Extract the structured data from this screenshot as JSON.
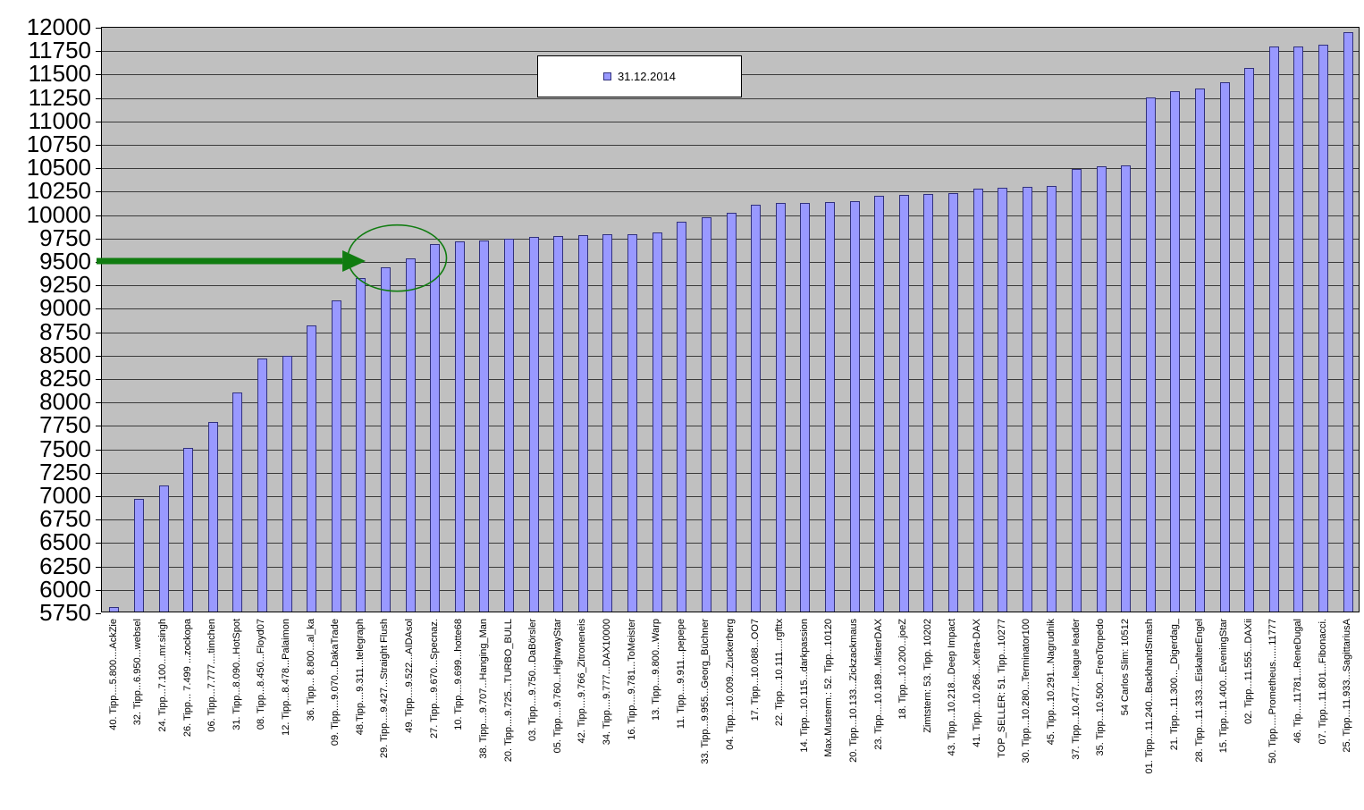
{
  "chart_data": {
    "type": "bar",
    "title": "",
    "legend": [
      "31.12.2014"
    ],
    "legend_position": "top-center",
    "grid": true,
    "ylim": [
      5750,
      12000
    ],
    "ytick_step": 250,
    "categories": [
      "40. Tipp....5.800....AckZie",
      "32. Tipp...6.950...websel",
      "24. Tipp...7.100...mr.singh",
      "26. Tipp... 7.499 ...zockopa",
      "06. Tipp...7.777....timchen",
      "31. Tipp...8.090...HotSpot",
      "08. Tipp...8.450...Floyd07",
      "12. Tipp...8.478...Palaimon",
      "36. Tipp... 8.800...al_ka",
      "09. Tipp....9.070...DakaTrade",
      "48.Tipp....9.311...telegraph",
      "29. Tipp....9.427...Straight Flush",
      "49. Tipp....9.522...AIDAsol",
      "27. Tipp....9.670...Specnaz.",
      "10. Tipp....9.699...hotte68",
      "38. Tipp....9.707...Hanging_Man",
      "20. Tipp....9.725...TURBO_BULL",
      "03. Tipp....9.750...DaBörsler",
      "05. Tipp....9.760...HighwayStar",
      "42. Tipp....9.766_Zitroneneis",
      "34. Tipp....9.777...DAX10000",
      "16. Tipp....9.781...ToMeister",
      "13. Tipp....9.800...Warp",
      "11. Tipp....9.911...pepepe",
      "33. Tipp...9.955...Georg_Büchner",
      "04. Tipp...10.009...Zuckerberg",
      "17. Tipp...10.088...OO7",
      "22. Tipp....10.111....rgfttx",
      "14. Tipp...10.115...darkpassion",
      "Max.Musterm.: 52. Tipp...10120",
      "20. Tipp...10.133...Zickzackmaus",
      "23. Tipp....10.189...MisterDAX",
      "18. Tipp...10.200...joeZ",
      "Zimtstern: 53. Tipp. 10202",
      "43. Tipp...10.218...Deep Impact",
      "41. Tipp...10.266...Xetra-DAX",
      "TOP_SELLER: 51. Tipp...10277",
      "30. Tipp...10.280...Terminator100",
      "45. Tipp...10.291...Nagrudnik",
      "37. Tipp...10.477...league leader",
      "35. Tipp...10.500...FreoTorpedo",
      "54 Carlos Slim: 10512",
      "01. Tipp...11.240...BackhandSmash",
      "21. Tipp...11.300..._Digerdag_",
      "28. Tipp...11.333...EiskalterEngel",
      "15. Tipp...11.400...EveningStar",
      "02. Tipp...11.555...DAXii",
      "50. Tipp.....Prometheus......11777",
      "46. Tip....11781...ReneDugal",
      "07. Tipp...11.801...Fibonacci.",
      "25. Tipp...11.933...SagittariusA"
    ],
    "values": [
      5800,
      6950,
      7100,
      7499,
      7777,
      8090,
      8450,
      8478,
      8800,
      9070,
      9311,
      9427,
      9522,
      9670,
      9699,
      9707,
      9725,
      9750,
      9760,
      9766,
      9777,
      9781,
      9800,
      9911,
      9955,
      10009,
      10088,
      10111,
      10115,
      10120,
      10133,
      10189,
      10200,
      10202,
      10218,
      10266,
      10277,
      10280,
      10291,
      10477,
      10500,
      10512,
      11240,
      11300,
      11333,
      11400,
      11555,
      11777,
      11781,
      11801,
      11933
    ],
    "colors": {
      "bar_fill": "#9999ff",
      "bar_border": "#31317d",
      "plot_bg": "#c0c0c0",
      "gridline": "#3a3a3a",
      "background": "#ffffff",
      "annotation": "#107c10"
    },
    "annotations": {
      "arrow": {
        "value": 9500
      },
      "ellipse": {
        "categories": [
          "29. Tipp....9.427...Straight Flush",
          "49. Tipp....9.522...AIDAsol"
        ]
      }
    }
  }
}
